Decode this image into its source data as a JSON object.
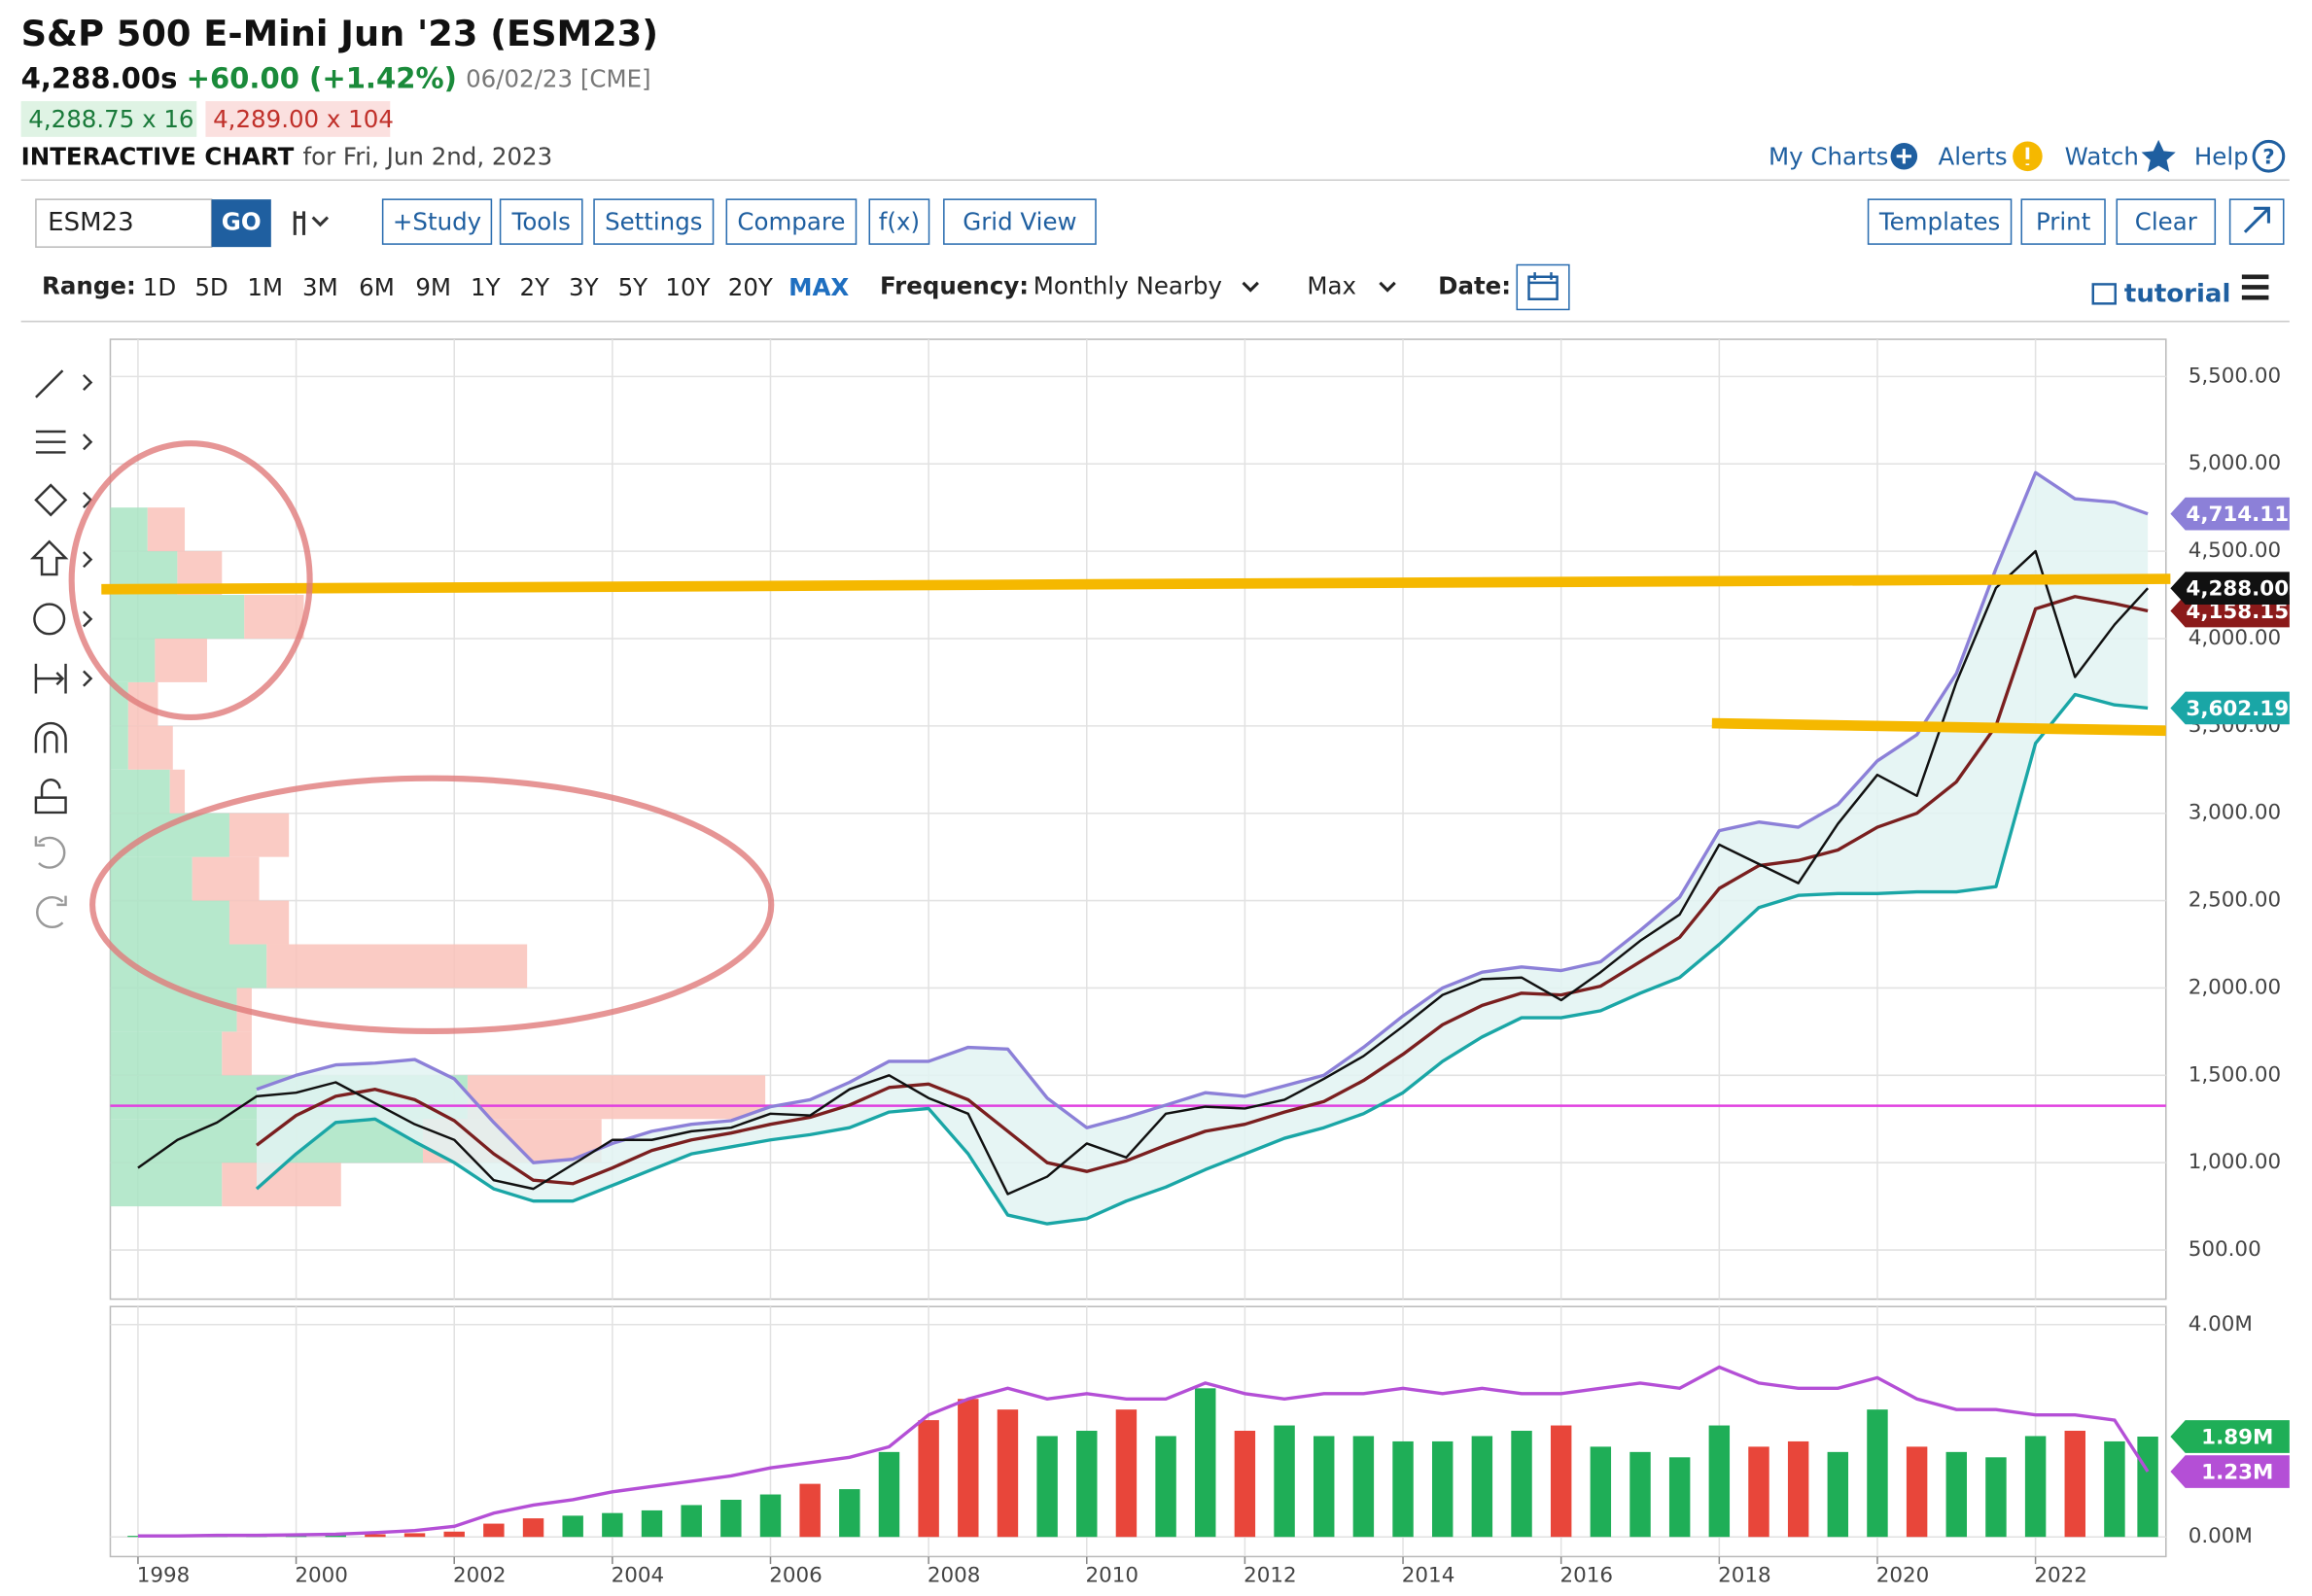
{
  "header": {
    "title": "S&P 500 E-Mini Jun '23 (ESM23)",
    "last": "4,288.00s",
    "change": "+60.00 (+1.42%)",
    "date": "06/02/23 [CME]",
    "bid": "4,288.75 x 16",
    "ask": "4,289.00 x 104",
    "chart_label": "INTERACTIVE CHART",
    "chart_date": "for Fri, Jun 2nd, 2023"
  },
  "nav": [
    "My Charts",
    "Alerts",
    "Watch",
    "Help"
  ],
  "toolbar": {
    "symbol": "ESM23",
    "go": "GO",
    "buttons": [
      "+Study",
      "Tools",
      "Settings",
      "Compare",
      "f(x)",
      "Grid View"
    ],
    "right_buttons": [
      "Templates",
      "Print",
      "Clear"
    ]
  },
  "range": {
    "label": "Range:",
    "options": [
      "1D",
      "5D",
      "1M",
      "3M",
      "6M",
      "9M",
      "1Y",
      "2Y",
      "3Y",
      "5Y",
      "10Y",
      "20Y",
      "MAX"
    ],
    "selected_index": 12
  },
  "frequency": {
    "label": "Frequency:",
    "value": "Monthly Nearby"
  },
  "period": "Max",
  "date_label": "Date:",
  "tutorial": "tutorial",
  "chart_data": [
    {
      "type": "line",
      "x": [
        1998.0,
        1998.5,
        1999.0,
        1999.5,
        2000.0,
        2000.5,
        2001.0,
        2001.5,
        2002.0,
        2002.5,
        2003.0,
        2003.5,
        2004.0,
        2004.5,
        2005.0,
        2005.5,
        2006.0,
        2006.5,
        2007.0,
        2007.5,
        2008.0,
        2008.5,
        2009.0,
        2009.5,
        2010.0,
        2010.5,
        2011.0,
        2011.5,
        2012.0,
        2012.5,
        2013.0,
        2013.5,
        2014.0,
        2014.5,
        2015.0,
        2015.5,
        2016.0,
        2016.5,
        2017.0,
        2017.5,
        2018.0,
        2018.5,
        2019.0,
        2019.5,
        2020.0,
        2020.5,
        2021.0,
        2021.5,
        2022.0,
        2022.5,
        2023.0,
        2023.42
      ],
      "series": [
        {
          "color": "#111111",
          "values": [
            970,
            1130,
            1230,
            1380,
            1400,
            1460,
            1340,
            1220,
            1130,
            900,
            850,
            990,
            1130,
            1130,
            1180,
            1200,
            1280,
            1270,
            1420,
            1500,
            1370,
            1280,
            820,
            920,
            1110,
            1030,
            1280,
            1320,
            1310,
            1360,
            1480,
            1610,
            1780,
            1960,
            2050,
            2060,
            1930,
            2090,
            2270,
            2420,
            2820,
            2710,
            2600,
            2940,
            3220,
            3100,
            3750,
            4290,
            4500,
            3780,
            4080,
            4288
          ]
        },
        {
          "color": "#8c80d8",
          "values": [
            null,
            null,
            null,
            1420,
            1500,
            1560,
            1570,
            1590,
            1480,
            1230,
            1000,
            1020,
            1110,
            1180,
            1220,
            1240,
            1320,
            1360,
            1460,
            1580,
            1580,
            1660,
            1650,
            1370,
            1200,
            1260,
            1330,
            1400,
            1380,
            1440,
            1500,
            1660,
            1840,
            2000,
            2090,
            2120,
            2100,
            2150,
            2330,
            2520,
            2900,
            2950,
            2920,
            3050,
            3300,
            3450,
            3800,
            4400,
            4950,
            4800,
            4780,
            4714.11
          ]
        },
        {
          "color": "#1aa6a6",
          "values": [
            null,
            null,
            null,
            850,
            1050,
            1230,
            1250,
            1120,
            1000,
            850,
            780,
            780,
            870,
            960,
            1050,
            1090,
            1130,
            1160,
            1200,
            1290,
            1310,
            1050,
            700,
            650,
            680,
            780,
            860,
            960,
            1050,
            1140,
            1200,
            1280,
            1400,
            1580,
            1720,
            1830,
            1830,
            1870,
            1970,
            2060,
            2250,
            2460,
            2530,
            2540,
            2540,
            2550,
            2550,
            2580,
            3400,
            3680,
            3620,
            3602.19
          ]
        },
        {
          "color": "#7a1f1f",
          "values": [
            null,
            null,
            null,
            1100,
            1270,
            1380,
            1420,
            1360,
            1240,
            1050,
            900,
            880,
            970,
            1070,
            1130,
            1170,
            1220,
            1260,
            1330,
            1430,
            1450,
            1360,
            1180,
            1000,
            950,
            1010,
            1100,
            1180,
            1220,
            1290,
            1350,
            1470,
            1620,
            1790,
            1900,
            1970,
            1960,
            2010,
            2150,
            2290,
            2570,
            2700,
            2730,
            2790,
            2920,
            3000,
            3180,
            3500,
            4170,
            4240,
            4200,
            4158.15
          ]
        }
      ],
      "band_fill": "#e2f3f2",
      "xlim": [
        1997.65,
        2023.65
      ],
      "xticks": [
        1998,
        2000,
        2002,
        2004,
        2006,
        2008,
        2010,
        2012,
        2014,
        2016,
        2018,
        2020,
        2022
      ],
      "ylim": [
        219,
        5713
      ],
      "yticks": [
        {
          "value": 500,
          "label": "500.00"
        },
        {
          "value": 1000,
          "label": "1,000.00"
        },
        {
          "value": 1500,
          "label": "1,500.00"
        },
        {
          "value": 2000,
          "label": "2,000.00"
        },
        {
          "value": 2500,
          "label": "2,500.00"
        },
        {
          "value": 3000,
          "label": "3,000.00"
        },
        {
          "value": 3500,
          "label": "3,500.00"
        },
        {
          "value": 4000,
          "label": "4,000.00"
        },
        {
          "value": 4500,
          "label": "4,500.00"
        },
        {
          "value": 5000,
          "label": "5,000.00"
        },
        {
          "value": 5500,
          "label": "5,500.00"
        }
      ],
      "grid": true,
      "reference_line": {
        "value": 1326,
        "color": "#e040e0"
      },
      "volume_profile": {
        "bins": [
          750,
          1000,
          1250,
          1500,
          1750,
          2000,
          2250,
          2500,
          2750,
          3000,
          3250,
          3500,
          3750,
          4000,
          4250,
          4500,
          4750
        ],
        "buy": [
          75,
          210,
          240,
          75,
          85,
          105,
          80,
          55,
          80,
          40,
          12,
          12,
          30,
          90,
          45,
          25
        ],
        "sell": [
          80,
          120,
          200,
          20,
          10,
          175,
          40,
          45,
          40,
          10,
          30,
          20,
          35,
          40,
          30,
          25
        ],
        "buy_color": "#a9e4c3",
        "sell_color": "#f9c2ba"
      },
      "badges": [
        {
          "value": 4714.11,
          "label": "4,714.11",
          "color": "#8c80d8"
        },
        {
          "value": 4158.15,
          "label": "4,158.15",
          "color": "#8b1a1a"
        },
        {
          "value": 4288.0,
          "label": "4,288.00",
          "color": "#111111"
        },
        {
          "value": 3602.19,
          "label": "3,602.19",
          "color": "#1aa6a6"
        }
      ]
    },
    {
      "type": "bar",
      "x": [
        1998.0,
        1998.5,
        1999.0,
        1999.5,
        2000.0,
        2000.5,
        2001.0,
        2001.5,
        2002.0,
        2002.5,
        2003.0,
        2003.5,
        2004.0,
        2004.5,
        2005.0,
        2005.5,
        2006.0,
        2006.5,
        2007.0,
        2007.5,
        2008.0,
        2008.5,
        2009.0,
        2009.5,
        2010.0,
        2010.5,
        2011.0,
        2011.5,
        2012.0,
        2012.5,
        2013.0,
        2013.5,
        2014.0,
        2014.5,
        2015.0,
        2015.5,
        2016.0,
        2016.5,
        2017.0,
        2017.5,
        2018.0,
        2018.5,
        2019.0,
        2019.5,
        2020.0,
        2020.5,
        2021.0,
        2021.5,
        2022.0,
        2022.5,
        2023.0,
        2023.42
      ],
      "series": [
        {
          "up_color": "#1fae57",
          "down_color": "#e8463a",
          "values": [
            0.02,
            0.02,
            0.02,
            0.03,
            0.03,
            0.04,
            0.05,
            0.07,
            0.1,
            0.25,
            0.35,
            0.4,
            0.45,
            0.5,
            0.6,
            0.7,
            0.8,
            1.0,
            0.9,
            1.6,
            2.2,
            2.6,
            2.4,
            1.9,
            2.0,
            2.4,
            1.9,
            2.8,
            2.0,
            2.1,
            1.9,
            1.9,
            1.8,
            1.8,
            1.9,
            2.0,
            2.1,
            1.7,
            1.6,
            1.5,
            2.1,
            1.7,
            1.8,
            1.6,
            2.4,
            1.7,
            1.6,
            1.5,
            1.9,
            2.0,
            1.8,
            1.89
          ]
        },
        {
          "color": "#b44fd6",
          "values": [
            0.02,
            0.02,
            0.03,
            0.03,
            0.04,
            0.05,
            0.08,
            0.12,
            0.2,
            0.45,
            0.6,
            0.7,
            0.85,
            0.95,
            1.05,
            1.15,
            1.3,
            1.4,
            1.5,
            1.7,
            2.3,
            2.6,
            2.8,
            2.6,
            2.7,
            2.6,
            2.6,
            2.9,
            2.7,
            2.6,
            2.7,
            2.7,
            2.8,
            2.7,
            2.8,
            2.7,
            2.7,
            2.8,
            2.9,
            2.8,
            3.2,
            2.9,
            2.8,
            2.8,
            3.0,
            2.6,
            2.4,
            2.4,
            2.3,
            2.3,
            2.2,
            1.23
          ]
        }
      ],
      "xlim": [
        1997.65,
        2023.65
      ],
      "xticks": [
        1998,
        2000,
        2002,
        2004,
        2006,
        2008,
        2010,
        2012,
        2014,
        2016,
        2018,
        2020,
        2022
      ],
      "ylim": [
        -0.37,
        4.34
      ],
      "yticks": [
        {
          "value": 0,
          "label": "0.00M"
        },
        {
          "value": 4,
          "label": "4.00M"
        }
      ],
      "badges": [
        {
          "value": 1.89,
          "label": "1.89M",
          "color": "#1fae57"
        },
        {
          "value": 1.23,
          "label": "1.23M",
          "color": "#b44fd6"
        }
      ]
    }
  ]
}
